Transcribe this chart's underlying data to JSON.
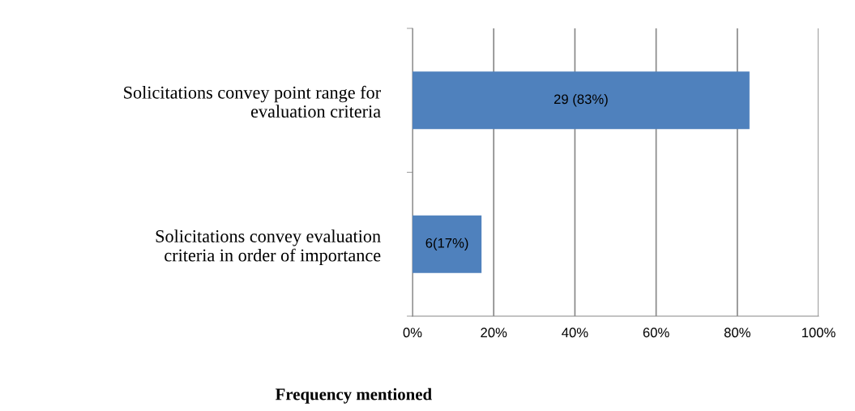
{
  "chart_data": {
    "type": "bar",
    "orientation": "horizontal",
    "xlabel": "Frequency mentioned",
    "categories": [
      "Solicitations convey point range for evaluation criteria",
      "Solicitations convey evaluation criteria in order of importance"
    ],
    "values": [
      83,
      17
    ],
    "value_labels": [
      "29 (83%)",
      "6(17%)"
    ],
    "color": "#4f81bd",
    "xlim": [
      0,
      100
    ],
    "xticks": [
      {
        "value": 0,
        "label": "0%"
      },
      {
        "value": 20,
        "label": "20%"
      },
      {
        "value": 40,
        "label": "40%"
      },
      {
        "value": 60,
        "label": "60%"
      },
      {
        "value": 80,
        "label": "80%"
      },
      {
        "value": 100,
        "label": "100%"
      }
    ],
    "grid": "x"
  }
}
